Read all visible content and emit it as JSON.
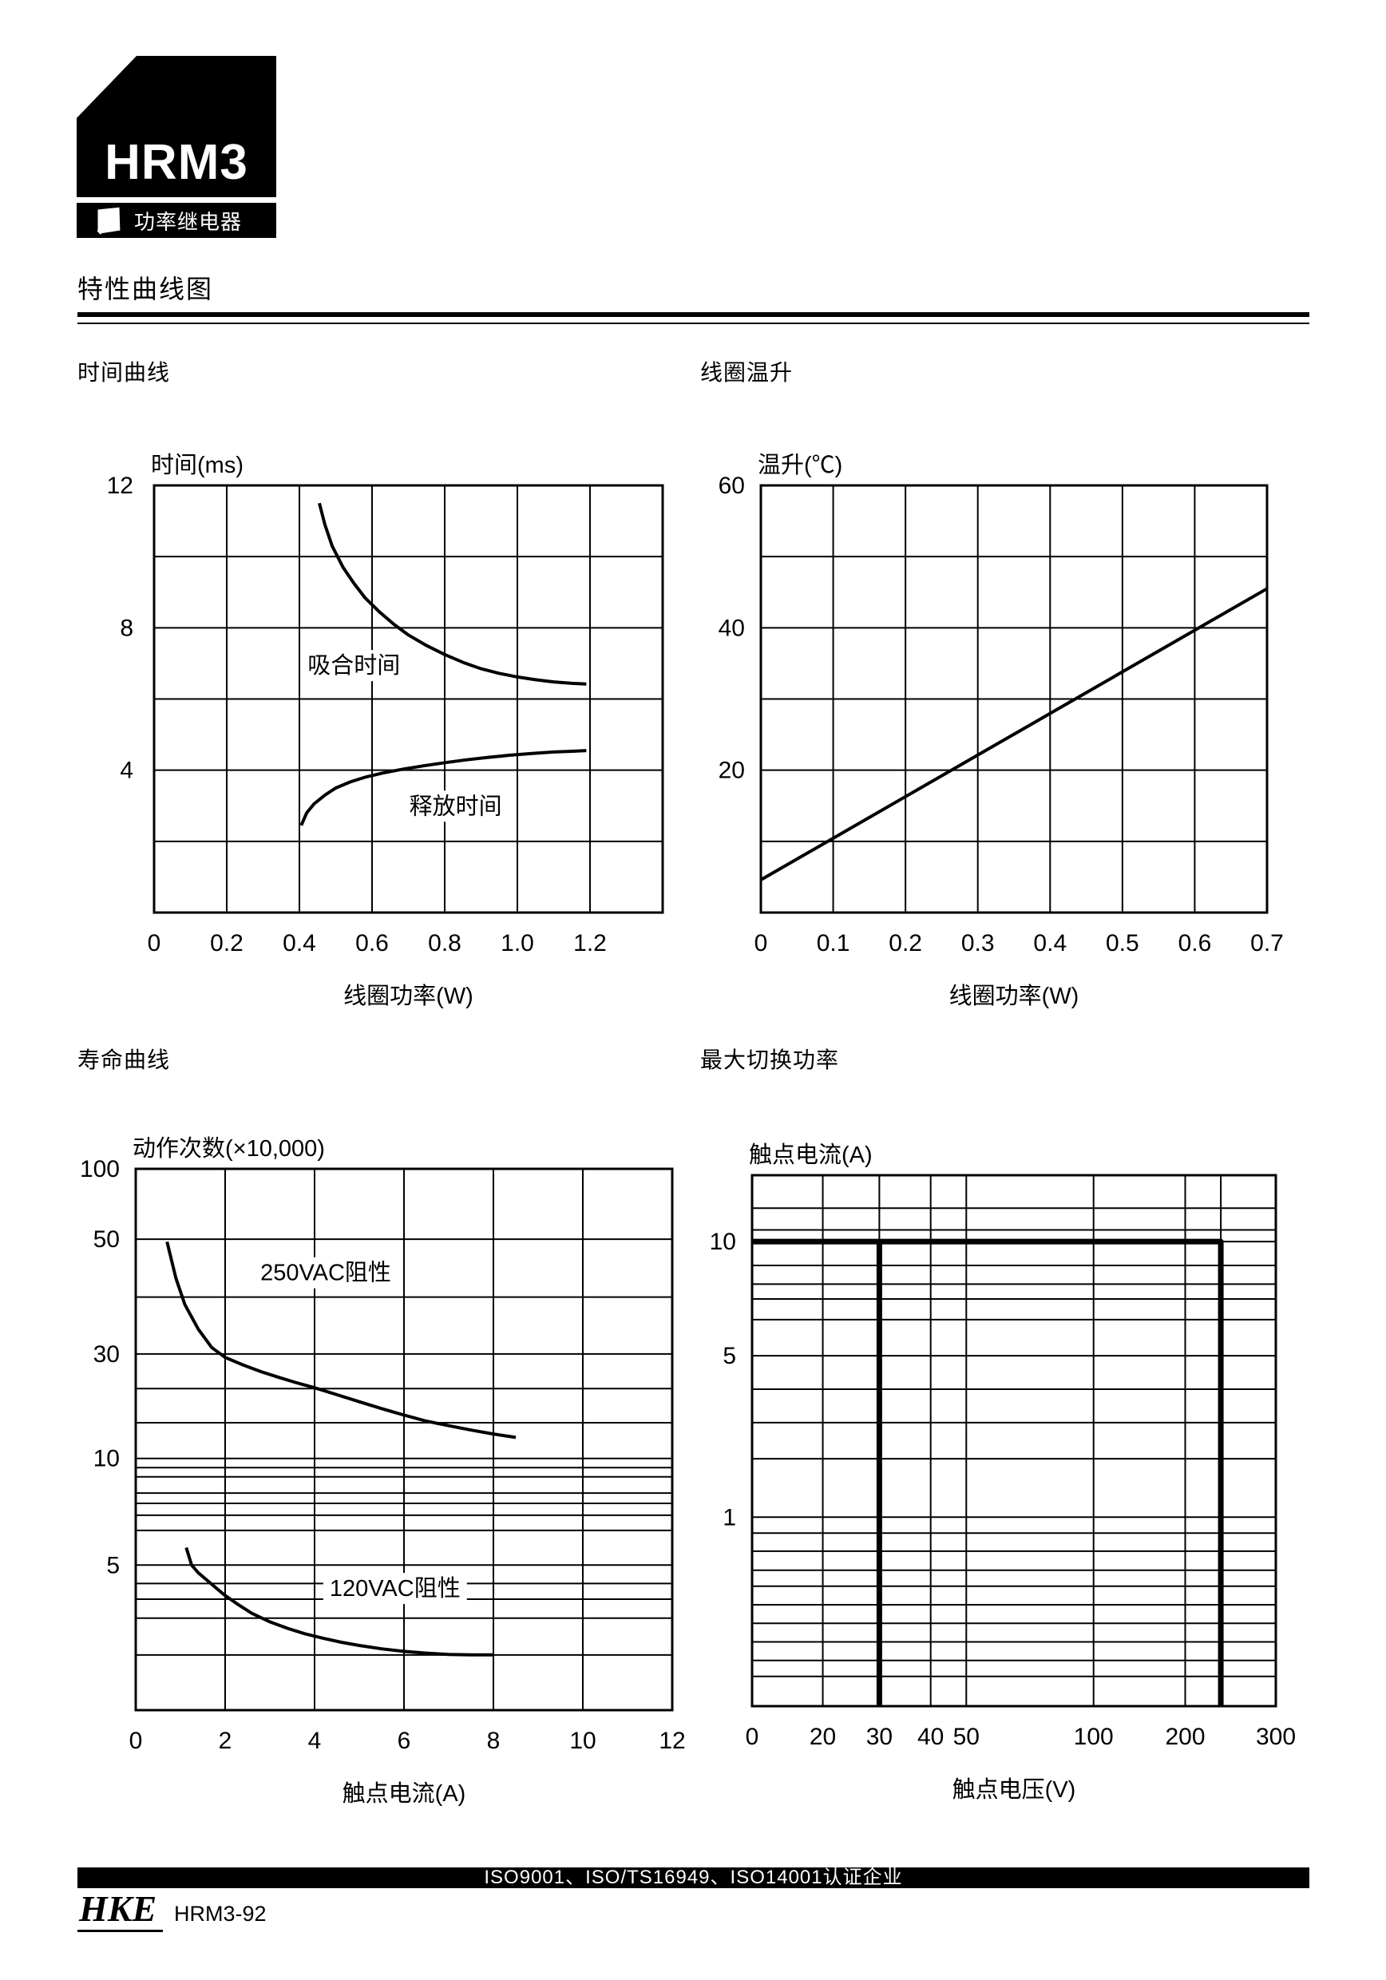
{
  "header": {
    "logo": "HRM3",
    "product_badge": "功率继电器",
    "page_title": "特性曲线图"
  },
  "footer": {
    "certification": "ISO9001、ISO/TS16949、ISO14001认证企业",
    "brand": "HKE",
    "doc_code": "HRM3-92"
  },
  "chart_data": [
    {
      "id": "time-curve",
      "type": "line",
      "section_title": "时间曲线",
      "ylabel": "时间(ms)",
      "xlabel": "线圈功率(W)",
      "xlim": [
        0,
        1.4
      ],
      "ylim": [
        0,
        12
      ],
      "grid": "on",
      "legend_position": "inline-labels",
      "x_ticks": [
        {
          "value": 0,
          "label": "0"
        },
        {
          "value": 0.2,
          "label": "0.2"
        },
        {
          "value": 0.4,
          "label": "0.4"
        },
        {
          "value": 0.6,
          "label": "0.6"
        },
        {
          "value": 0.8,
          "label": "0.8"
        },
        {
          "value": 1.0,
          "label": "1.0"
        },
        {
          "value": 1.2,
          "label": "1.2"
        }
      ],
      "y_ticks": [
        {
          "value": 12,
          "label": "12"
        },
        {
          "value": 8,
          "label": "8"
        },
        {
          "value": 4,
          "label": "4"
        }
      ],
      "series": [
        {
          "label": "吸合时间",
          "label_pos": [
            0.55,
            6.95
          ],
          "points": [
            [
              0.455,
              11.5
            ],
            [
              0.47,
              10.9
            ],
            [
              0.49,
              10.3
            ],
            [
              0.52,
              9.7
            ],
            [
              0.55,
              9.25
            ],
            [
              0.58,
              8.85
            ],
            [
              0.62,
              8.45
            ],
            [
              0.66,
              8.1
            ],
            [
              0.7,
              7.8
            ],
            [
              0.75,
              7.5
            ],
            [
              0.8,
              7.25
            ],
            [
              0.85,
              7.03
            ],
            [
              0.9,
              6.85
            ],
            [
              0.95,
              6.72
            ],
            [
              1.0,
              6.62
            ],
            [
              1.05,
              6.54
            ],
            [
              1.1,
              6.48
            ],
            [
              1.15,
              6.44
            ],
            [
              1.19,
              6.42
            ]
          ]
        },
        {
          "label": "释放时间",
          "label_pos": [
            0.83,
            3.0
          ],
          "points": [
            [
              0.405,
              2.45
            ],
            [
              0.42,
              2.8
            ],
            [
              0.44,
              3.05
            ],
            [
              0.47,
              3.3
            ],
            [
              0.5,
              3.5
            ],
            [
              0.54,
              3.67
            ],
            [
              0.58,
              3.8
            ],
            [
              0.63,
              3.92
            ],
            [
              0.68,
              4.02
            ],
            [
              0.74,
              4.12
            ],
            [
              0.8,
              4.21
            ],
            [
              0.86,
              4.29
            ],
            [
              0.92,
              4.36
            ],
            [
              0.98,
              4.42
            ],
            [
              1.04,
              4.47
            ],
            [
              1.1,
              4.51
            ],
            [
              1.15,
              4.53
            ],
            [
              1.19,
              4.55
            ]
          ]
        }
      ]
    },
    {
      "id": "coil-temperature-rise",
      "type": "line",
      "section_title": "线圈温升",
      "ylabel": "温升(℃)",
      "xlabel": "线圈功率(W)",
      "xlim": [
        0,
        0.7
      ],
      "ylim": [
        0,
        60
      ],
      "grid": "on",
      "x_ticks": [
        {
          "value": 0,
          "label": "0"
        },
        {
          "value": 0.1,
          "label": "0.1"
        },
        {
          "value": 0.2,
          "label": "0.2"
        },
        {
          "value": 0.3,
          "label": "0.3"
        },
        {
          "value": 0.4,
          "label": "0.4"
        },
        {
          "value": 0.5,
          "label": "0.5"
        },
        {
          "value": 0.6,
          "label": "0.6"
        },
        {
          "value": 0.7,
          "label": "0.7"
        }
      ],
      "y_ticks": [
        {
          "value": 60,
          "label": "60"
        },
        {
          "value": 40,
          "label": "40"
        },
        {
          "value": 20,
          "label": "20"
        }
      ],
      "series": [
        {
          "label": "",
          "points": [
            [
              0,
              4.6
            ],
            [
              0.7,
              45.5
            ]
          ]
        }
      ]
    },
    {
      "id": "life-curve",
      "type": "line",
      "section_title": "寿命曲线",
      "ylabel": "动作次数(×10,000)",
      "xlabel": "触点电流(A)",
      "xlim": [
        0,
        12
      ],
      "ylim": [
        1.2,
        100
      ],
      "y_scale": "log",
      "grid": "on",
      "x_ticks": [
        {
          "value": 0,
          "label": "0"
        },
        {
          "value": 2,
          "label": "2"
        },
        {
          "value": 4,
          "label": "4"
        },
        {
          "value": 6,
          "label": "6"
        },
        {
          "value": 8,
          "label": "8"
        },
        {
          "value": 10,
          "label": "10"
        },
        {
          "value": 12,
          "label": "12"
        }
      ],
      "y_ticks": [
        {
          "value": 100,
          "label": "100"
        },
        {
          "value": 50,
          "label": "50"
        },
        {
          "value": 30,
          "label": "30"
        },
        {
          "value": 10,
          "label": "10"
        },
        {
          "value": 5,
          "label": "5"
        }
      ],
      "series": [
        {
          "label": "250VAC阻性",
          "label_pos": [
            4.25,
            44
          ],
          "points": [
            [
              0.7,
              49.5
            ],
            [
              0.9,
              43
            ],
            [
              1.1,
              38.5
            ],
            [
              1.4,
              34
            ],
            [
              1.7,
              31
            ],
            [
              2.0,
              28.8
            ],
            [
              2.4,
              26.4
            ],
            [
              2.8,
              24.4
            ],
            [
              3.2,
              22.8
            ],
            [
              3.6,
              21.4
            ],
            [
              4.0,
              20.2
            ],
            [
              4.5,
              19.0
            ],
            [
              5.0,
              17.9
            ],
            [
              5.5,
              16.9
            ],
            [
              6.0,
              16.0
            ],
            [
              6.5,
              15.2
            ],
            [
              7.0,
              14.5
            ],
            [
              7.5,
              13.8
            ],
            [
              8.0,
              13.2
            ],
            [
              8.5,
              12.7
            ]
          ]
        },
        {
          "label": "120VAC阻性",
          "label_pos": [
            5.8,
            3.85
          ],
          "points": [
            [
              1.13,
              5.6
            ],
            [
              1.25,
              5.0
            ],
            [
              1.4,
              4.55
            ],
            [
              1.6,
              4.15
            ],
            [
              1.8,
              3.85
            ],
            [
              2.0,
              3.62
            ],
            [
              2.3,
              3.35
            ],
            [
              2.6,
              3.12
            ],
            [
              3.0,
              2.88
            ],
            [
              3.4,
              2.68
            ],
            [
              3.8,
              2.52
            ],
            [
              4.2,
              2.4
            ],
            [
              4.6,
              2.3
            ],
            [
              5.0,
              2.22
            ],
            [
              5.5,
              2.14
            ],
            [
              6.0,
              2.08
            ],
            [
              6.5,
              2.04
            ],
            [
              7.0,
              2.01
            ],
            [
              7.5,
              2.0
            ],
            [
              8.0,
              2.0
            ]
          ]
        }
      ]
    },
    {
      "id": "max-switching-power",
      "type": "line",
      "section_title": "最大切换功率",
      "ylabel": "触点电流(A)",
      "xlabel": "触点电压(V)",
      "xlim": [
        0,
        300
      ],
      "ylim": [
        0.2,
        22
      ],
      "y_scale": "log",
      "x_scale": "log-like",
      "grid": "on",
      "x_ticks": [
        {
          "value": 0,
          "label": "0"
        },
        {
          "value": 20,
          "label": "20"
        },
        {
          "value": 30,
          "label": "30"
        },
        {
          "value": 40,
          "label": "40"
        },
        {
          "value": 50,
          "label": "50"
        },
        {
          "value": 100,
          "label": "100"
        },
        {
          "value": 200,
          "label": "200"
        },
        {
          "value": 300,
          "label": "300"
        }
      ],
      "y_ticks": [
        {
          "value": 10,
          "label": "10"
        },
        {
          "value": 5,
          "label": "5"
        },
        {
          "value": 1,
          "label": "1"
        }
      ],
      "series": [
        {
          "label": "",
          "points": [
            [
              0,
              10
            ],
            [
              250,
              10
            ],
            [
              250,
              0.2
            ]
          ]
        },
        {
          "label": "",
          "points": [
            [
              30,
              10
            ],
            [
              30,
              0.2
            ]
          ]
        }
      ]
    }
  ]
}
